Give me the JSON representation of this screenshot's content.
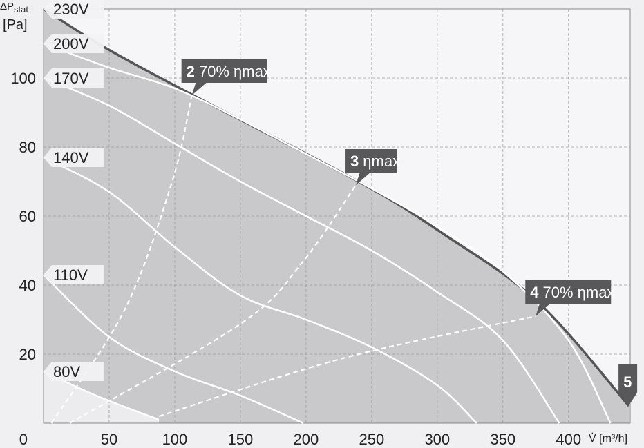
{
  "chart_data": {
    "type": "line",
    "y_label": "ΔP",
    "y_label_sub": "stat",
    "y_label_unit": "[Pa]",
    "x_label": "V̇ [m³/h]",
    "xlim": [
      0,
      447
    ],
    "ylim": [
      0,
      120
    ],
    "xticks": [
      50,
      100,
      150,
      200,
      250,
      300,
      350,
      400
    ],
    "yticks": [
      0,
      20,
      40,
      60,
      80,
      100
    ],
    "grid": true,
    "series": [
      {
        "name": "230V",
        "color": "#555555",
        "x": [
          0,
          46,
          114,
          240,
          304,
          377,
          446
        ],
        "values": [
          120,
          109,
          95,
          70,
          55,
          35,
          5
        ]
      },
      {
        "name": "200V",
        "color": "#ffffff",
        "x": [
          0,
          50,
          100,
          150,
          200,
          250,
          300,
          350,
          400,
          432
        ],
        "values": [
          110,
          103,
          97,
          88,
          78,
          68,
          57,
          44,
          24,
          0
        ]
      },
      {
        "name": "170V",
        "color": "#ffffff",
        "x": [
          0,
          50,
          100,
          150,
          200,
          250,
          300,
          350,
          393
        ],
        "values": [
          100,
          92,
          81,
          70,
          60,
          50,
          38,
          24,
          0
        ]
      },
      {
        "name": "140V",
        "color": "#ffffff",
        "x": [
          0,
          50,
          100,
          150,
          200,
          250,
          300,
          330
        ],
        "values": [
          77,
          67,
          51,
          37,
          30,
          22,
          11,
          0
        ]
      },
      {
        "name": "110V",
        "color": "#ffffff",
        "x": [
          0,
          50,
          100,
          150,
          198
        ],
        "values": [
          43,
          25,
          15,
          8,
          0
        ]
      },
      {
        "name": "80V",
        "color": "#ffffff",
        "x": [
          0,
          40,
          88
        ],
        "values": [
          15,
          8,
          1
        ]
      }
    ],
    "efficiency_lines": [
      {
        "x": [
          6,
          62,
          98,
          113
        ],
        "values": [
          0,
          33,
          70,
          95
        ]
      },
      {
        "x": [
          20,
          151,
          198,
          238
        ],
        "values": [
          0,
          29,
          47,
          69
        ]
      },
      {
        "x": [
          88,
          230,
          375
        ],
        "values": [
          2,
          19,
          31
        ]
      }
    ],
    "annotations": [
      {
        "number": "2",
        "text": "70% ηmax",
        "x": 113,
        "y": 95
      },
      {
        "number": "3",
        "text": "ηmax",
        "x": 238,
        "y": 69
      },
      {
        "number": "4",
        "text": "70% ηmax",
        "x": 375,
        "y": 31
      },
      {
        "number": "5",
        "x": 446,
        "y": 5
      }
    ]
  }
}
